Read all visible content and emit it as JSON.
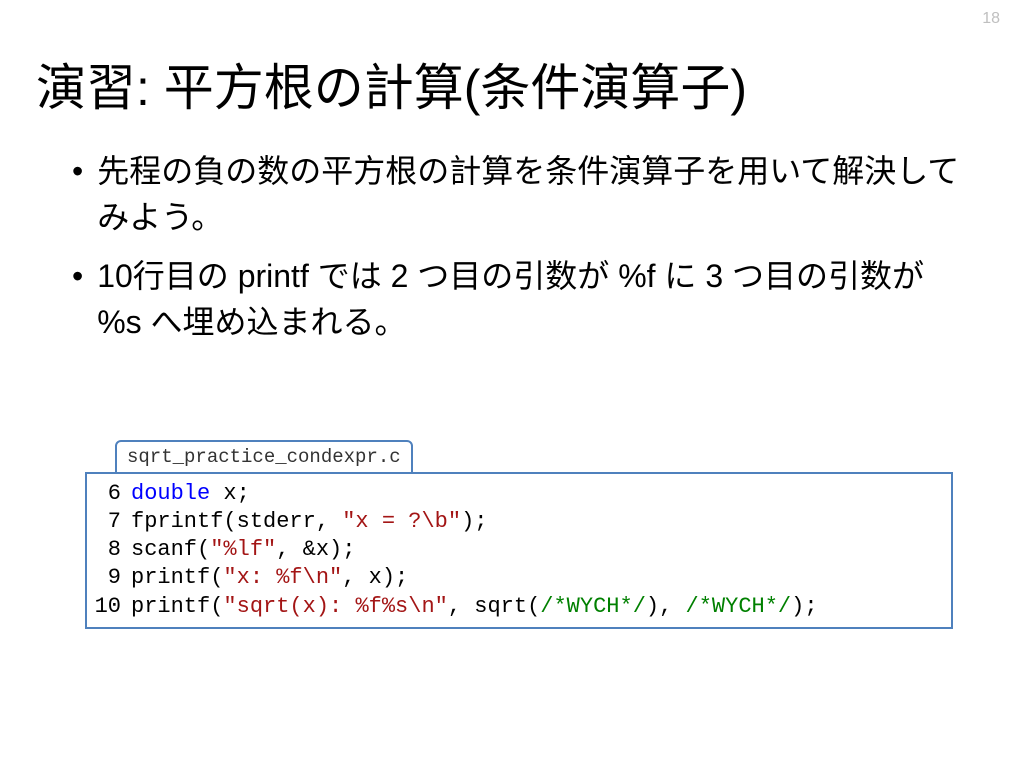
{
  "page_number": "18",
  "title": "演習: 平方根の計算(条件演算子)",
  "bullets": [
    "先程の負の数の平方根の計算を条件演算子を用いて解決してみよう。",
    "10行目の printf では 2 つ目の引数が %f に 3 つ目の引数が %s へ埋め込まれる。"
  ],
  "code": {
    "filename": "sqrt_practice_condexpr.c",
    "lines": [
      {
        "n": "6",
        "tokens": [
          {
            "t": "double",
            "c": "type"
          },
          {
            "t": " x;",
            "c": "plain"
          }
        ]
      },
      {
        "n": "7",
        "tokens": [
          {
            "t": "fprintf(stderr, ",
            "c": "plain"
          },
          {
            "t": "\"x = ?\\b\"",
            "c": "str"
          },
          {
            "t": ");",
            "c": "plain"
          }
        ]
      },
      {
        "n": "8",
        "tokens": [
          {
            "t": "scanf(",
            "c": "plain"
          },
          {
            "t": "\"%lf\"",
            "c": "str"
          },
          {
            "t": ", &x);",
            "c": "plain"
          }
        ]
      },
      {
        "n": "9",
        "tokens": [
          {
            "t": "printf(",
            "c": "plain"
          },
          {
            "t": "\"x: %f\\n\"",
            "c": "str"
          },
          {
            "t": ", x);",
            "c": "plain"
          }
        ]
      },
      {
        "n": "10",
        "tokens": [
          {
            "t": "printf(",
            "c": "plain"
          },
          {
            "t": "\"sqrt(x): %f%s\\n\"",
            "c": "str"
          },
          {
            "t": ", sqrt(",
            "c": "plain"
          },
          {
            "t": "/*WYCH*/",
            "c": "cmt"
          },
          {
            "t": "), ",
            "c": "plain"
          },
          {
            "t": "/*WYCH*/",
            "c": "cmt"
          },
          {
            "t": ");",
            "c": "plain"
          }
        ]
      }
    ]
  },
  "colors": {
    "border": "#4f81bd",
    "type": "#0000ff",
    "string": "#a31515",
    "comment": "#008000",
    "pagenum": "#bfbfbf"
  }
}
